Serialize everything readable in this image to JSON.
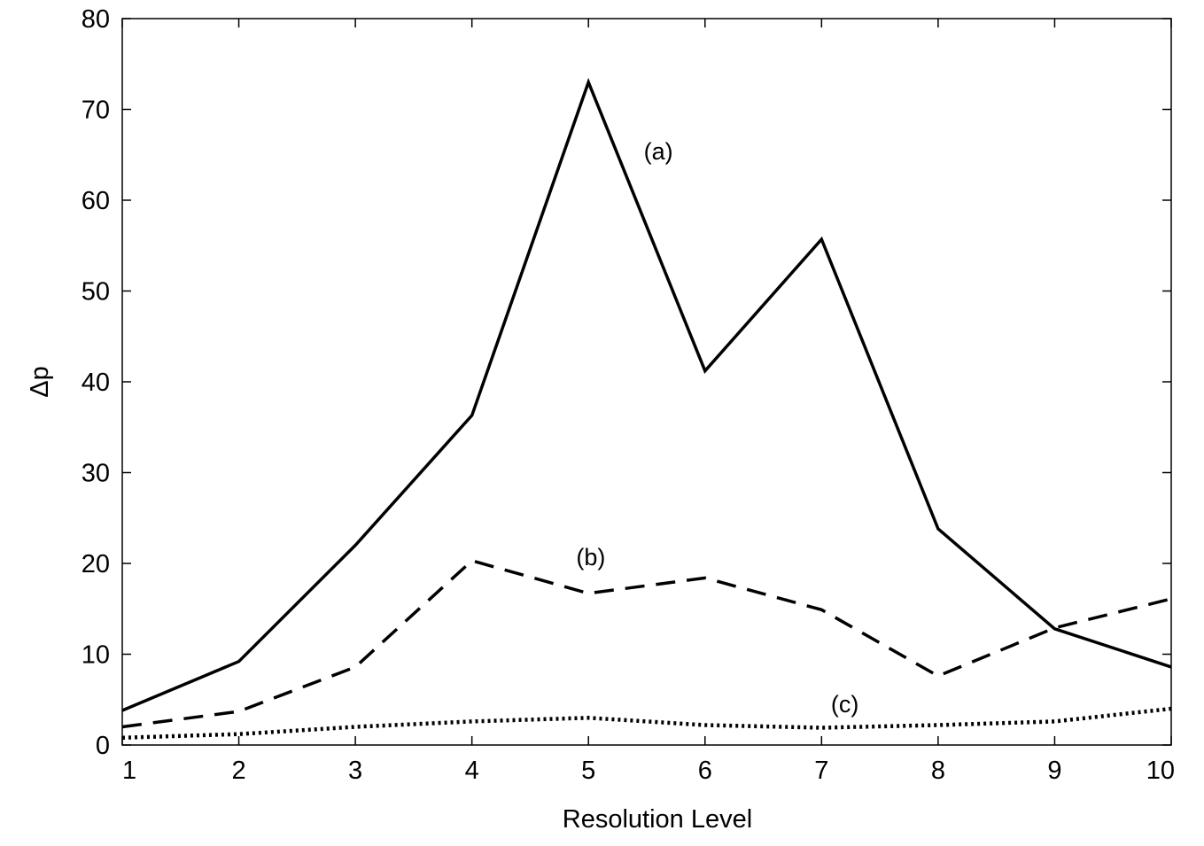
{
  "chart_data": {
    "type": "line",
    "xlabel": "Resolution Level",
    "ylabel": "Δp",
    "xlim": [
      1,
      10
    ],
    "ylim": [
      0,
      80
    ],
    "xticks": [
      "1",
      "2",
      "3",
      "4",
      "5",
      "6",
      "7",
      "8",
      "9",
      "10"
    ],
    "yticks": [
      "0",
      "10",
      "20",
      "30",
      "40",
      "50",
      "60",
      "70",
      "80"
    ],
    "grid": false,
    "x": [
      1,
      2,
      3,
      4,
      5,
      6,
      7,
      8,
      9,
      10
    ],
    "series": [
      {
        "key": "a",
        "style": "solid",
        "color": "#000000",
        "values": [
          3.8,
          9.2,
          22.0,
          36.3,
          73.0,
          41.2,
          55.7,
          23.8,
          12.8,
          8.6
        ]
      },
      {
        "key": "b",
        "style": "dashed",
        "color": "#000000",
        "values": [
          2.0,
          3.7,
          8.6,
          20.3,
          16.7,
          18.4,
          14.9,
          7.6,
          12.9,
          16.1
        ]
      },
      {
        "key": "c",
        "style": "dotted",
        "color": "#000000",
        "values": [
          0.8,
          1.2,
          2.0,
          2.6,
          3.0,
          2.2,
          1.9,
          2.2,
          2.6,
          4.0
        ]
      }
    ],
    "annotations": [
      {
        "text": "(a)",
        "x": 5.6,
        "y": 64.5,
        "series": "a"
      },
      {
        "text": "(b)",
        "x": 5.02,
        "y": 19.8,
        "series": "b"
      },
      {
        "text": "(c)",
        "x": 7.2,
        "y": 3.6,
        "series": "c"
      }
    ]
  }
}
